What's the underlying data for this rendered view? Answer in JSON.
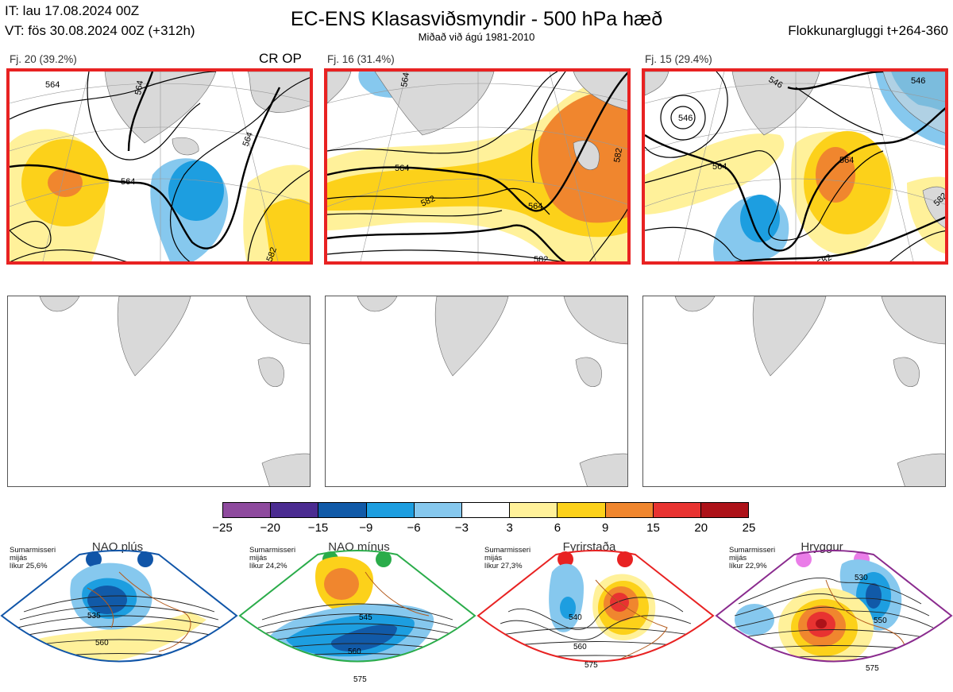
{
  "header": {
    "it": "IT: lau 17.08.2024 00Z",
    "vt": "VT: fös 30.08.2024 00Z  (+312h)",
    "title": "EC-ENS Klasasviðsmyndir - 500 hPa hæð",
    "subtitle": "Miðað við ágú 1981-2010",
    "window": "Flokkunargluggi t+264-360"
  },
  "clusters": [
    {
      "label": "Fj. 20 (39.2%)",
      "tag": "CR OP",
      "contours": [
        "564",
        "564",
        "564",
        "564",
        "582"
      ]
    },
    {
      "label": "Fj. 16 (31.4%)",
      "tag": "",
      "contours": [
        "564",
        "564",
        "564",
        "582",
        "582",
        "582"
      ]
    },
    {
      "label": "Fj. 15 (29.4%)",
      "tag": "",
      "contours": [
        "546",
        "546",
        "546",
        "564",
        "564",
        "582",
        "582"
      ]
    }
  ],
  "colorbar": {
    "colors": [
      "#8e4a9e",
      "#4b2c91",
      "#115aa8",
      "#1d9ee0",
      "#86c8ee",
      "#ffffff",
      "#fff19a",
      "#fcd11a",
      "#f0862e",
      "#e83331",
      "#ad1219"
    ],
    "ticks": [
      "−25",
      "−20",
      "−15",
      "−9",
      "−6",
      "−3",
      "3",
      "6",
      "9",
      "15",
      "20",
      "25"
    ]
  },
  "regimes": [
    {
      "name": "NAO plús",
      "note": [
        "Sumarmisseri",
        "mijás",
        "líkur 25,6%"
      ],
      "color": "#1055a8",
      "contours": [
        "535",
        "560"
      ]
    },
    {
      "name": "NAO mínus",
      "note": [
        "Sumarmisseri",
        "mijás",
        "líkur 24,2%"
      ],
      "color": "#2aac4a",
      "contours": [
        "545",
        "560",
        "575"
      ]
    },
    {
      "name": "Fyrirstaða",
      "note": [
        "Sumarmisseri",
        "mijás",
        "líkur 27,3%"
      ],
      "color": "#e82222",
      "contours": [
        "540",
        "560",
        "575"
      ]
    },
    {
      "name": "Hryggur",
      "note": [
        "Sumarmisseri",
        "mijás",
        "líkur 22,9%"
      ],
      "color": "#8a2b8e",
      "contours": [
        "530",
        "550",
        "575"
      ]
    }
  ]
}
